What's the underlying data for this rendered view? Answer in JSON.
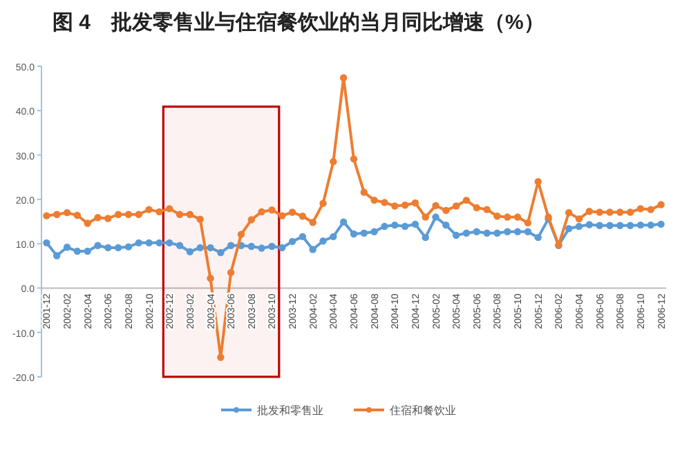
{
  "chart_data": {
    "type": "line",
    "title": "图 4　批发零售业与住宿餐饮业的当月同比增速（%）",
    "categories": [
      "2001-12",
      null,
      "2002-02",
      null,
      "2002-04",
      null,
      "2002-06",
      null,
      "2002-08",
      null,
      "2002-10",
      null,
      "2002-12",
      null,
      "2003-02",
      null,
      "2003-04",
      null,
      "2003-06",
      null,
      "2003-08",
      null,
      "2003-10",
      null,
      "2003-12",
      null,
      "2004-02",
      null,
      "2004-04",
      null,
      "2004-06",
      null,
      "2004-08",
      null,
      "2004-10",
      null,
      "2004-12",
      null,
      "2005-02",
      null,
      "2005-04",
      null,
      "2005-06",
      null,
      "2005-08",
      null,
      "2005-10",
      null,
      "2005-12",
      null,
      "2006-02",
      null,
      "2006-04",
      null,
      "2006-06",
      null,
      "2006-08",
      null,
      "2006-10",
      null,
      "2006-12"
    ],
    "series": [
      {
        "name": "批发和零售业",
        "color": "#5b9bd5",
        "values": [
          10.2,
          7.3,
          9.2,
          8.3,
          8.3,
          9.6,
          9.1,
          9.1,
          9.3,
          10.2,
          10.2,
          10.2,
          10.2,
          9.6,
          8.2,
          9.1,
          9.1,
          8.0,
          9.6,
          9.6,
          9.4,
          9.0,
          9.4,
          9.1,
          10.5,
          11.6,
          8.7,
          10.6,
          11.6,
          14.9,
          12.2,
          12.4,
          12.7,
          13.9,
          14.2,
          13.9,
          14.4,
          11.4,
          16.0,
          14.2,
          11.9,
          12.4,
          12.7,
          12.4,
          12.4,
          12.7,
          12.7,
          12.7,
          11.4,
          15.6,
          9.6,
          13.4,
          13.9,
          14.3,
          14.1,
          14.1,
          14.1,
          14.1,
          14.2,
          14.2,
          14.4
        ]
      },
      {
        "name": "住宿和餐饮业",
        "color": "#ed7d31",
        "values": [
          16.3,
          16.6,
          17.0,
          16.4,
          14.6,
          15.9,
          15.7,
          16.6,
          16.6,
          16.6,
          17.7,
          17.2,
          17.9,
          16.6,
          16.6,
          15.5,
          2.2,
          -15.6,
          3.5,
          12.1,
          15.4,
          17.2,
          17.6,
          16.3,
          17.1,
          16.2,
          14.8,
          19.1,
          28.5,
          47.4,
          29.1,
          21.6,
          19.8,
          19.3,
          18.5,
          18.7,
          19.2,
          16.0,
          18.6,
          17.5,
          18.5,
          19.8,
          18.1,
          17.7,
          16.2,
          16.0,
          16.0,
          14.7,
          24.0,
          16.0,
          9.7,
          17.0,
          15.6,
          17.3,
          17.1,
          17.1,
          17.1,
          17.1,
          17.9,
          17.7,
          18.8
        ]
      }
    ],
    "ylim": [
      -20,
      50
    ],
    "yticks": [
      {
        "value": -20,
        "label": "-20.0"
      },
      {
        "value": -10,
        "label": "-10.0"
      },
      {
        "value": 0,
        "label": "0.0"
      },
      {
        "value": 10,
        "label": "10.0"
      },
      {
        "value": 20,
        "label": "20.0"
      },
      {
        "value": 30,
        "label": "30.0"
      },
      {
        "value": 40,
        "label": "40.0"
      },
      {
        "value": 50,
        "label": "50.0"
      }
    ],
    "bands": [
      {
        "axis": "x",
        "from": "2002-12",
        "to": "2003-10",
        "color": "#c00000"
      }
    ],
    "legend": "bottom",
    "marker": "circle",
    "line_style": "solid"
  }
}
